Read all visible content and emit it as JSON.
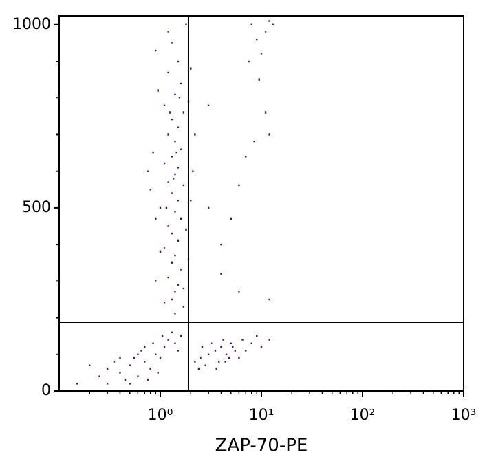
{
  "chart_data": {
    "type": "scatter",
    "xlabel": "ZAP-70-PE",
    "color": "#4b0a86",
    "xlog": true,
    "xlim": [
      0.1,
      1000
    ],
    "ylim": [
      0,
      1024
    ],
    "xticks": [
      {
        "value": 1,
        "label": "10⁰"
      },
      {
        "value": 10,
        "label": "10¹"
      },
      {
        "value": 100,
        "label": "10²"
      },
      {
        "value": 1000,
        "label": "10³"
      }
    ],
    "xminorticks": [
      0.2,
      0.3,
      0.4,
      0.5,
      0.6,
      0.7,
      0.8,
      0.9,
      2,
      3,
      4,
      5,
      6,
      7,
      8,
      9,
      20,
      30,
      40,
      50,
      60,
      70,
      80,
      90,
      200,
      300,
      400,
      500,
      600,
      700,
      800,
      900
    ],
    "yticks": [
      0,
      500,
      1000
    ],
    "yminorticks": [
      100,
      200,
      300,
      400,
      600,
      700,
      800,
      900
    ],
    "gates": {
      "x": 1.9,
      "y": 186
    },
    "x": [
      1.3,
      1.5,
      1.2,
      1.6,
      1.4,
      1.1,
      1.7,
      1.3,
      1.5,
      1.2,
      1.4,
      1.6,
      1.3,
      1.1,
      1.5,
      1.4,
      1.2,
      1.7,
      1.3,
      1.5,
      1.0,
      1.4,
      1.6,
      1.2,
      1.3,
      1.5,
      1.1,
      1.4,
      1.3,
      1.6,
      1.2,
      1.5,
      1.4,
      1.3,
      1.7,
      1.4,
      1.2,
      1.8,
      0.9,
      2.0,
      0.95,
      1.9,
      0.85,
      2.1,
      0.8,
      2.0,
      0.9,
      1.8,
      1.0,
      1.9,
      0.9,
      1.7,
      1.1,
      2.2,
      0.75,
      1.25,
      1.45,
      1.35,
      1.55,
      1.15,
      0.3,
      0.4,
      0.5,
      0.6,
      0.7,
      0.8,
      0.9,
      1.0,
      1.1,
      1.2,
      0.45,
      0.55,
      0.65,
      0.75,
      0.85,
      0.35,
      0.25,
      0.2,
      0.15,
      0.95,
      1.3,
      1.5,
      1.6,
      0.5,
      0.7,
      1.05,
      0.6,
      0.4,
      0.3,
      1.4,
      2.5,
      3.0,
      3.5,
      4.0,
      4.5,
      5.0,
      5.5,
      6.0,
      2.8,
      3.2,
      3.8,
      4.2,
      4.8,
      5.2,
      6.5,
      7.0,
      2.2,
      2.6,
      3.6,
      4.4,
      8.0,
      9.0,
      10,
      12,
      2.4,
      8,
      9,
      10,
      11,
      12,
      9.5,
      11,
      12,
      8.5,
      7,
      6,
      5,
      4,
      13,
      7.5,
      3,
      3,
      4,
      6,
      12
    ],
    "y": [
      950,
      900,
      870,
      840,
      810,
      780,
      760,
      740,
      720,
      700,
      680,
      660,
      640,
      620,
      610,
      590,
      570,
      560,
      540,
      520,
      500,
      490,
      470,
      450,
      430,
      410,
      390,
      370,
      350,
      330,
      310,
      290,
      270,
      250,
      230,
      210,
      980,
      1000,
      930,
      880,
      820,
      790,
      650,
      600,
      550,
      520,
      470,
      440,
      380,
      360,
      300,
      280,
      240,
      700,
      600,
      760,
      650,
      580,
      800,
      500,
      60,
      50,
      70,
      40,
      80,
      60,
      100,
      90,
      120,
      140,
      30,
      90,
      110,
      30,
      130,
      80,
      40,
      70,
      20,
      50,
      160,
      110,
      150,
      20,
      120,
      150,
      100,
      90,
      20,
      130,
      90,
      100,
      110,
      120,
      100,
      130,
      110,
      90,
      70,
      130,
      80,
      140,
      90,
      120,
      140,
      110,
      80,
      120,
      60,
      80,
      130,
      150,
      120,
      140,
      60,
      1000,
      960,
      920,
      980,
      1010,
      850,
      760,
      700,
      680,
      640,
      560,
      470,
      400,
      1000,
      900,
      780,
      500,
      320,
      270,
      250
    ]
  }
}
